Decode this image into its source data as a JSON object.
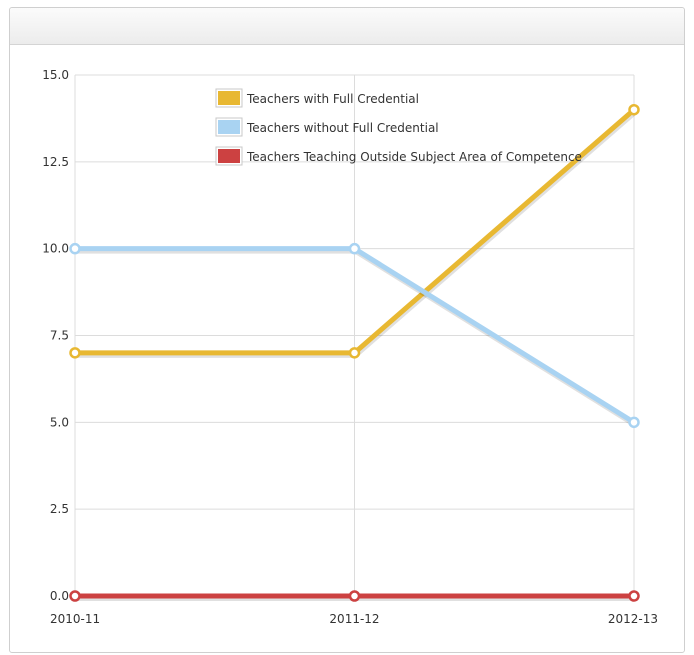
{
  "chart_data": {
    "type": "line",
    "categories": [
      "2010-11",
      "2011-12",
      "2012-13"
    ],
    "ylim": [
      0,
      15
    ],
    "yticks": [
      "0.0",
      "2.5",
      "5.0",
      "7.5",
      "10.0",
      "12.5",
      "15.0"
    ],
    "grid": true,
    "legend_position": "top",
    "series": [
      {
        "name": "Teachers with Full Credential",
        "values": [
          7,
          7,
          14
        ],
        "color": "#e8b832"
      },
      {
        "name": "Teachers without Full Credential",
        "values": [
          10,
          10,
          5
        ],
        "color": "#a9d3f2"
      },
      {
        "name": "Teachers Teaching Outside Subject Area of Competence",
        "values": [
          0,
          0,
          0
        ],
        "color": "#cc4141"
      }
    ]
  }
}
